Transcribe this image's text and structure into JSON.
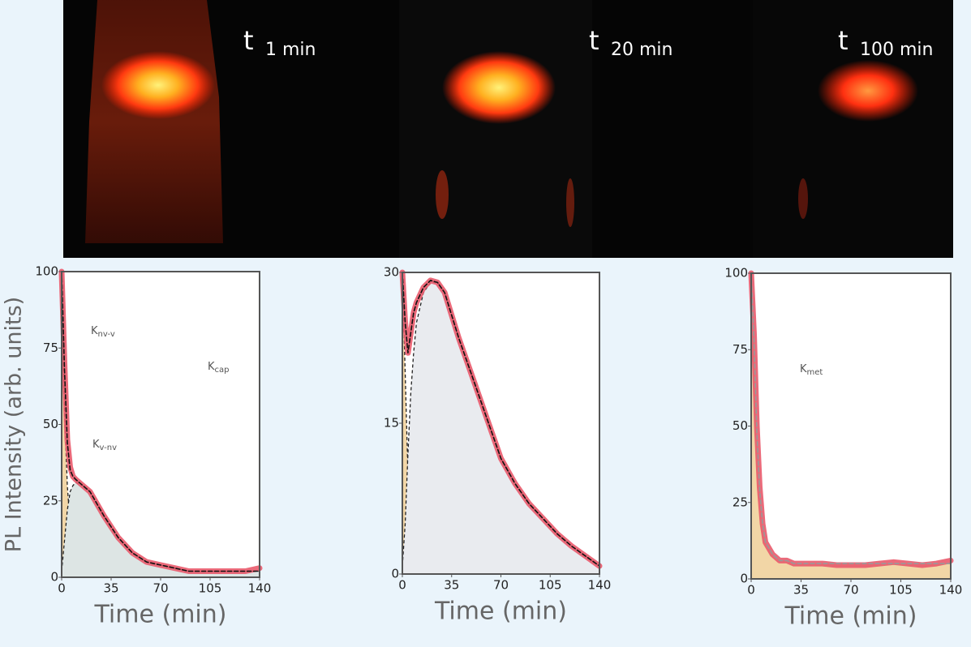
{
  "panels": [
    {
      "label": "t",
      "time": "1 min"
    },
    {
      "label": "t",
      "time": "20 min"
    },
    {
      "label": "t",
      "time": "100 min"
    }
  ],
  "chart_data": [
    {
      "type": "line",
      "xlabel": "Time (min)",
      "ylabel": "PL Intensity (arb. units)",
      "x": [
        0,
        2,
        4,
        6,
        8,
        10,
        15,
        20,
        25,
        30,
        40,
        50,
        60,
        70,
        80,
        90,
        100,
        110,
        120,
        130,
        140
      ],
      "xlim": [
        0,
        140
      ],
      "xticks": [
        0,
        35,
        70,
        105,
        140
      ],
      "ylim": [
        0,
        100
      ],
      "yticks": [
        0,
        25,
        50,
        75,
        100
      ],
      "series": [
        {
          "color": "#f2d6a6",
          "fill": true,
          "dash": true,
          "values": [
            100,
            55,
            30,
            17,
            10,
            6,
            3,
            2,
            2,
            2,
            2,
            2,
            2,
            2,
            2,
            2,
            2,
            2,
            2,
            2,
            2
          ]
        },
        {
          "color": "#dde5e4",
          "fill": true,
          "dash": true,
          "values": [
            2,
            12,
            22,
            28,
            30,
            31,
            30,
            28,
            24,
            20,
            13,
            8,
            5,
            4,
            3,
            2,
            2,
            2,
            2,
            2,
            2
          ]
        },
        {
          "color": "#e95a6b",
          "width": 7,
          "values": [
            100,
            70,
            45,
            36,
            33,
            32,
            30,
            28,
            24,
            20,
            13,
            8,
            5,
            4,
            3,
            2,
            2,
            2,
            2,
            2,
            3
          ]
        },
        {
          "color": "#111111",
          "dash": true,
          "values": [
            100,
            68,
            44,
            35,
            33,
            32,
            30,
            28,
            24,
            20,
            13,
            8,
            5,
            4,
            3,
            2,
            2,
            2,
            2,
            2,
            2
          ]
        }
      ],
      "annotations": [
        {
          "text": "K",
          "subscript": "nv-v"
        },
        {
          "text": "K",
          "subscript": "cap"
        },
        {
          "text": "K",
          "subscript": "v-nv"
        }
      ]
    },
    {
      "type": "line",
      "xlabel": "Time (min)",
      "x": [
        0,
        2,
        4,
        6,
        8,
        10,
        15,
        20,
        25,
        30,
        40,
        50,
        60,
        70,
        80,
        90,
        100,
        110,
        120,
        130,
        140
      ],
      "xlim": [
        0,
        140
      ],
      "xticks": [
        0,
        35,
        70,
        105,
        140
      ],
      "ylim": [
        0,
        30
      ],
      "yticks": [
        0,
        15,
        30
      ],
      "series": [
        {
          "color": "#f2d6a6",
          "fill": true,
          "dash": true,
          "values": [
            30,
            20,
            10,
            5,
            3,
            2,
            1,
            0.8,
            0.8,
            0.8,
            0.8,
            0.8,
            0.8,
            0.8,
            0.8,
            0.8,
            0.8,
            0.8,
            0.8,
            0.8,
            0.8
          ]
        },
        {
          "color": "#e9ebef",
          "fill": true,
          "dash": true,
          "values": [
            0.8,
            5,
            12,
            18,
            22,
            25,
            28,
            29,
            29,
            28,
            23.5,
            19.5,
            15.5,
            11.5,
            9,
            7,
            5.5,
            4,
            2.8,
            1.8,
            0.8
          ]
        },
        {
          "color": "#e95a6b",
          "width": 7,
          "values": [
            30,
            25,
            22,
            24,
            26,
            27,
            28.5,
            29.2,
            29,
            28,
            23.5,
            19.5,
            15.5,
            11.5,
            9,
            7,
            5.5,
            4,
            2.8,
            1.8,
            0.8
          ]
        },
        {
          "color": "#111111",
          "dash": true,
          "values": [
            30,
            25,
            22,
            24,
            26,
            27,
            28.5,
            29.2,
            29,
            28,
            23.5,
            19.5,
            15.5,
            11.5,
            9,
            7,
            5.5,
            4,
            2.8,
            1.8,
            0.8
          ]
        }
      ]
    },
    {
      "type": "line",
      "xlabel": "Time (min)",
      "x": [
        0,
        2,
        4,
        6,
        8,
        10,
        15,
        20,
        25,
        30,
        40,
        50,
        60,
        70,
        80,
        90,
        100,
        110,
        120,
        130,
        140
      ],
      "xlim": [
        0,
        140
      ],
      "xticks": [
        0,
        35,
        70,
        105,
        140
      ],
      "ylim": [
        0,
        100
      ],
      "yticks": [
        0,
        25,
        50,
        75,
        100
      ],
      "series": [
        {
          "color": "#f2d6a6",
          "fill": true,
          "values": [
            100,
            78,
            48,
            29,
            18,
            12,
            8,
            6,
            6,
            5,
            5,
            5,
            5,
            5,
            5,
            5,
            5,
            5,
            5,
            5,
            5
          ]
        },
        {
          "color": "#e95a6b",
          "width": 7,
          "values": [
            100,
            80,
            50,
            30,
            18,
            12,
            8,
            6,
            6,
            5,
            5,
            5,
            4.5,
            4.5,
            4.5,
            5,
            5.5,
            5,
            4.5,
            5,
            6
          ]
        },
        {
          "color": "#999999",
          "dash": true,
          "values": [
            100,
            78,
            48,
            29,
            18,
            12,
            8,
            6,
            6,
            5,
            5,
            5,
            5,
            5,
            5,
            5,
            5,
            5,
            5,
            5,
            5
          ]
        }
      ],
      "annotations": [
        {
          "text": "K",
          "subscript": "met"
        }
      ]
    }
  ]
}
